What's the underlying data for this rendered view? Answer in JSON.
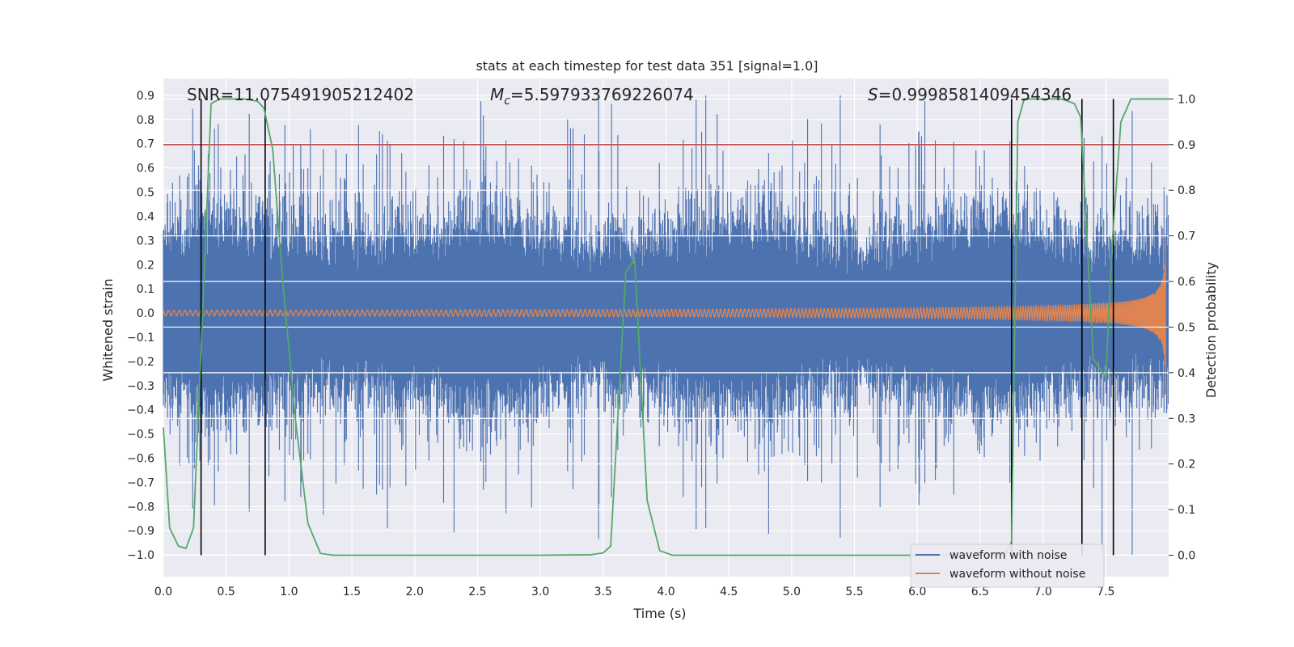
{
  "chart_data": {
    "type": "line",
    "title": "stats at each timestep for test data 351 [signal=1.0]",
    "xlabel": "Time (s)",
    "ylabel": "Whitened strain",
    "y2label": "Detection probability",
    "xlim": [
      0.0,
      8.0
    ],
    "ylim": [
      -1.09,
      0.97
    ],
    "y2lim": [
      -0.047,
      1.045
    ],
    "xticks": [
      0.0,
      0.5,
      1.0,
      1.5,
      2.0,
      2.5,
      3.0,
      3.5,
      4.0,
      4.5,
      5.0,
      5.5,
      6.0,
      6.5,
      7.0,
      7.5
    ],
    "xtick_labels": [
      "0.0",
      "0.5",
      "1.0",
      "1.5",
      "2.0",
      "2.5",
      "3.0",
      "3.5",
      "4.0",
      "4.5",
      "5.0",
      "5.5",
      "6.0",
      "6.5",
      "7.0",
      "7.5"
    ],
    "yticks": [
      0.9,
      0.8,
      0.7,
      0.6,
      0.5,
      0.4,
      0.3,
      0.2,
      0.1,
      0.0,
      -0.1,
      -0.2,
      -0.3,
      -0.4,
      -0.5,
      -0.6,
      -0.7,
      -0.8,
      -0.9,
      -1.0
    ],
    "ytick_labels": [
      "0.9",
      "0.8",
      "0.7",
      "0.6",
      "0.5",
      "0.4",
      "0.3",
      "0.2",
      "0.1",
      "0.0",
      "−0.1",
      "−0.2",
      "−0.3",
      "−0.4",
      "−0.5",
      "−0.6",
      "−0.7",
      "−0.8",
      "−0.9",
      "−1.0"
    ],
    "y2ticks": [
      1.0,
      0.9,
      0.8,
      0.7,
      0.6,
      0.5,
      0.4,
      0.3,
      0.2,
      0.1,
      0.0
    ],
    "y2tick_labels": [
      "1.0",
      "0.9",
      "0.8",
      "0.7",
      "0.6",
      "0.5",
      "0.4",
      "0.3",
      "0.2",
      "0.1",
      "0.0"
    ],
    "annotations": {
      "snr_text": "SNR=11.075491905212402",
      "mc_symbol": "M",
      "mc_sub": "c",
      "mc_value": "=5.597933769226074",
      "s_symbol": "S",
      "s_value": "=0.9998581409454346"
    },
    "threshold_y2": 0.9,
    "vertical_lines_x": [
      0.3,
      0.81,
      6.75,
      7.31,
      7.56
    ],
    "detection_probability": {
      "x": [
        0.0,
        0.05,
        0.12,
        0.18,
        0.24,
        0.3,
        0.38,
        0.45,
        0.55,
        0.65,
        0.75,
        0.8,
        0.87,
        0.95,
        1.05,
        1.15,
        1.25,
        1.35,
        2.0,
        3.0,
        3.4,
        3.5,
        3.56,
        3.68,
        3.75,
        3.85,
        3.95,
        4.05,
        5.0,
        6.0,
        6.7,
        6.75,
        6.8,
        6.85,
        7.0,
        7.15,
        7.25,
        7.3,
        7.4,
        7.5,
        7.55,
        7.62,
        7.7,
        8.0
      ],
      "y": [
        0.28,
        0.06,
        0.02,
        0.015,
        0.06,
        0.45,
        0.99,
        1.0,
        1.0,
        1.0,
        0.995,
        0.98,
        0.89,
        0.6,
        0.3,
        0.07,
        0.004,
        0.0,
        0.0,
        0.0,
        0.001,
        0.005,
        0.02,
        0.62,
        0.65,
        0.12,
        0.01,
        0.0,
        0.0,
        0.0,
        0.0,
        0.03,
        0.95,
        1.0,
        1.0,
        1.0,
        0.99,
        0.96,
        0.43,
        0.39,
        0.68,
        0.95,
        1.0,
        1.0
      ]
    },
    "legend": {
      "position": "lower-right",
      "entries": [
        {
          "name": "waveform with noise",
          "color": "#4c72b0"
        },
        {
          "name": "waveform without noise",
          "color": "#dd8452"
        }
      ]
    },
    "colors": {
      "background": "#eaeaf2",
      "grid": "#ffffff",
      "noise": "#4c72b0",
      "clean": "#dd8452",
      "probability": "#55a868",
      "threshold": "#c44e52",
      "vline": "#000000"
    }
  }
}
